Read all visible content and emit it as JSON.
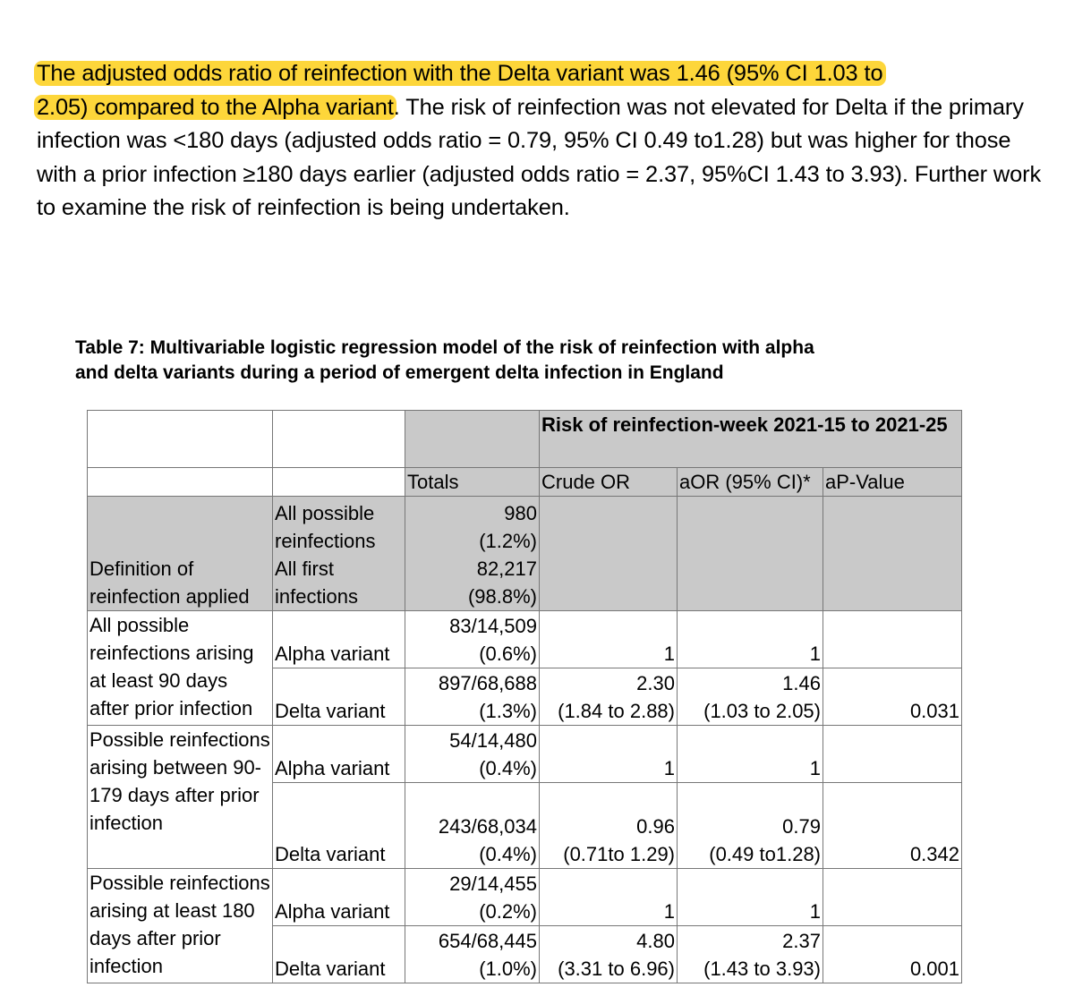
{
  "paragraph": {
    "highlight_1": "The adjusted odds ratio of reinfection with the Delta variant was 1.46 (95% CI 1.03 to",
    "highlight_2": "2.05) compared to the Alpha variant",
    "rest": ". The risk of reinfection was not elevated for Delta if the primary infection was <180 days (adjusted odds ratio = 0.79, 95% CI 0.49 to1.28) but was higher for those with a prior infection ≥180 days earlier (adjusted odds ratio = 2.37, 95%CI 1.43 to 3.93). Further work to examine the risk of reinfection is being undertaken."
  },
  "caption": {
    "line1": "Table 7: Multivariable logistic regression model of the risk of reinfection with alpha",
    "line2": "and delta variants during a period of emergent delta infection in England"
  },
  "table": {
    "group_header": "Risk of reinfection-week 2021-15 to 2021-25",
    "columns": [
      "Totals",
      "Crude OR",
      "aOR (95% CI)*",
      "aP-Value"
    ],
    "definition": {
      "label": "Definition of reinfection applied",
      "rows": [
        {
          "sub": "All possible reinfections",
          "total_a": "980",
          "total_b": "(1.2%)"
        },
        {
          "sub": "All first infections",
          "total_a": "82,217",
          "total_b": "(98.8%)"
        }
      ]
    },
    "groups": [
      {
        "label": "All possible reinfections arising at least 90 days after prior infection",
        "rows": [
          {
            "variant": "Alpha variant",
            "total_a": "83/14,509",
            "total_b": "(0.6%)",
            "crude_a": "",
            "crude_b": "1",
            "aor_a": "",
            "aor_b": "1",
            "p": ""
          },
          {
            "variant": "Delta variant",
            "total_a": "897/68,688",
            "total_b": "(1.3%)",
            "crude_a": "2.30",
            "crude_b": "(1.84 to 2.88)",
            "aor_a": "1.46",
            "aor_b": "(1.03 to 2.05)",
            "p": "0.031"
          }
        ]
      },
      {
        "label": "Possible reinfections arising between 90-179 days after prior infection",
        "rows": [
          {
            "variant": "Alpha variant",
            "total_a": "54/14,480",
            "total_b": "(0.4%)",
            "crude_a": "",
            "crude_b": "1",
            "aor_a": "",
            "aor_b": "1",
            "p": ""
          },
          {
            "variant": "Delta variant",
            "total_a": "243/68,034",
            "total_b": "(0.4%)",
            "crude_a": "0.96",
            "crude_b": "(0.71to 1.29)",
            "aor_a": "0.79",
            "aor_b": "(0.49 to1.28)",
            "p": "0.342"
          }
        ]
      },
      {
        "label": "Possible reinfections arising at least 180 days after prior infection",
        "rows": [
          {
            "variant": "Alpha variant",
            "total_a": "29/14,455",
            "total_b": "(0.2%)",
            "crude_a": "",
            "crude_b": "1",
            "aor_a": "",
            "aor_b": "1",
            "p": ""
          },
          {
            "variant": "Delta variant",
            "total_a": "654/68,445",
            "total_b": "(1.0%)",
            "crude_a": "4.80",
            "crude_b": "(3.31 to 6.96)",
            "aor_a": "2.37",
            "aor_b": "(1.43 to 3.93)",
            "p": "0.001"
          }
        ]
      }
    ]
  },
  "colors": {
    "highlight": "#fdd63a",
    "header_fill": "#c9c9c9"
  }
}
